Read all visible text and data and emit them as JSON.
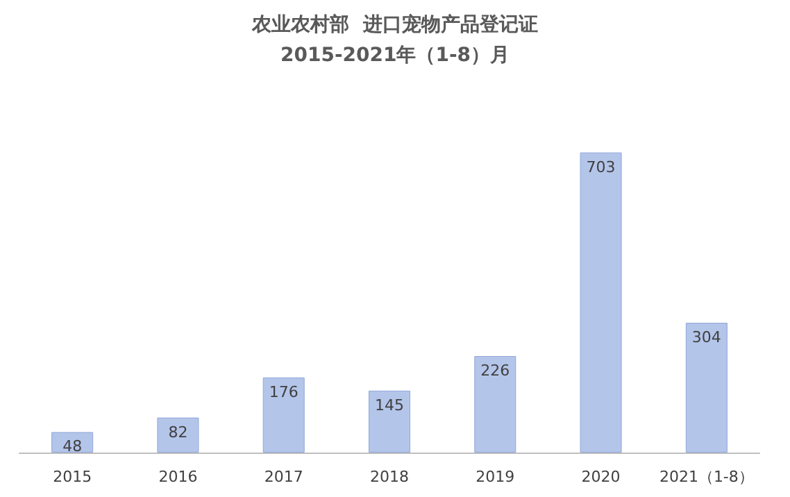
{
  "chart_data": {
    "type": "bar",
    "title": "农业农村部  进口宠物产品登记证",
    "subtitle": "2015-2021年（1-8）月",
    "categories": [
      "2015",
      "2016",
      "2017",
      "2018",
      "2019",
      "2020",
      "2021（1-8）"
    ],
    "values": [
      48,
      82,
      176,
      145,
      226,
      703,
      304
    ],
    "color": "#b4c5ea",
    "data_labels": true
  }
}
